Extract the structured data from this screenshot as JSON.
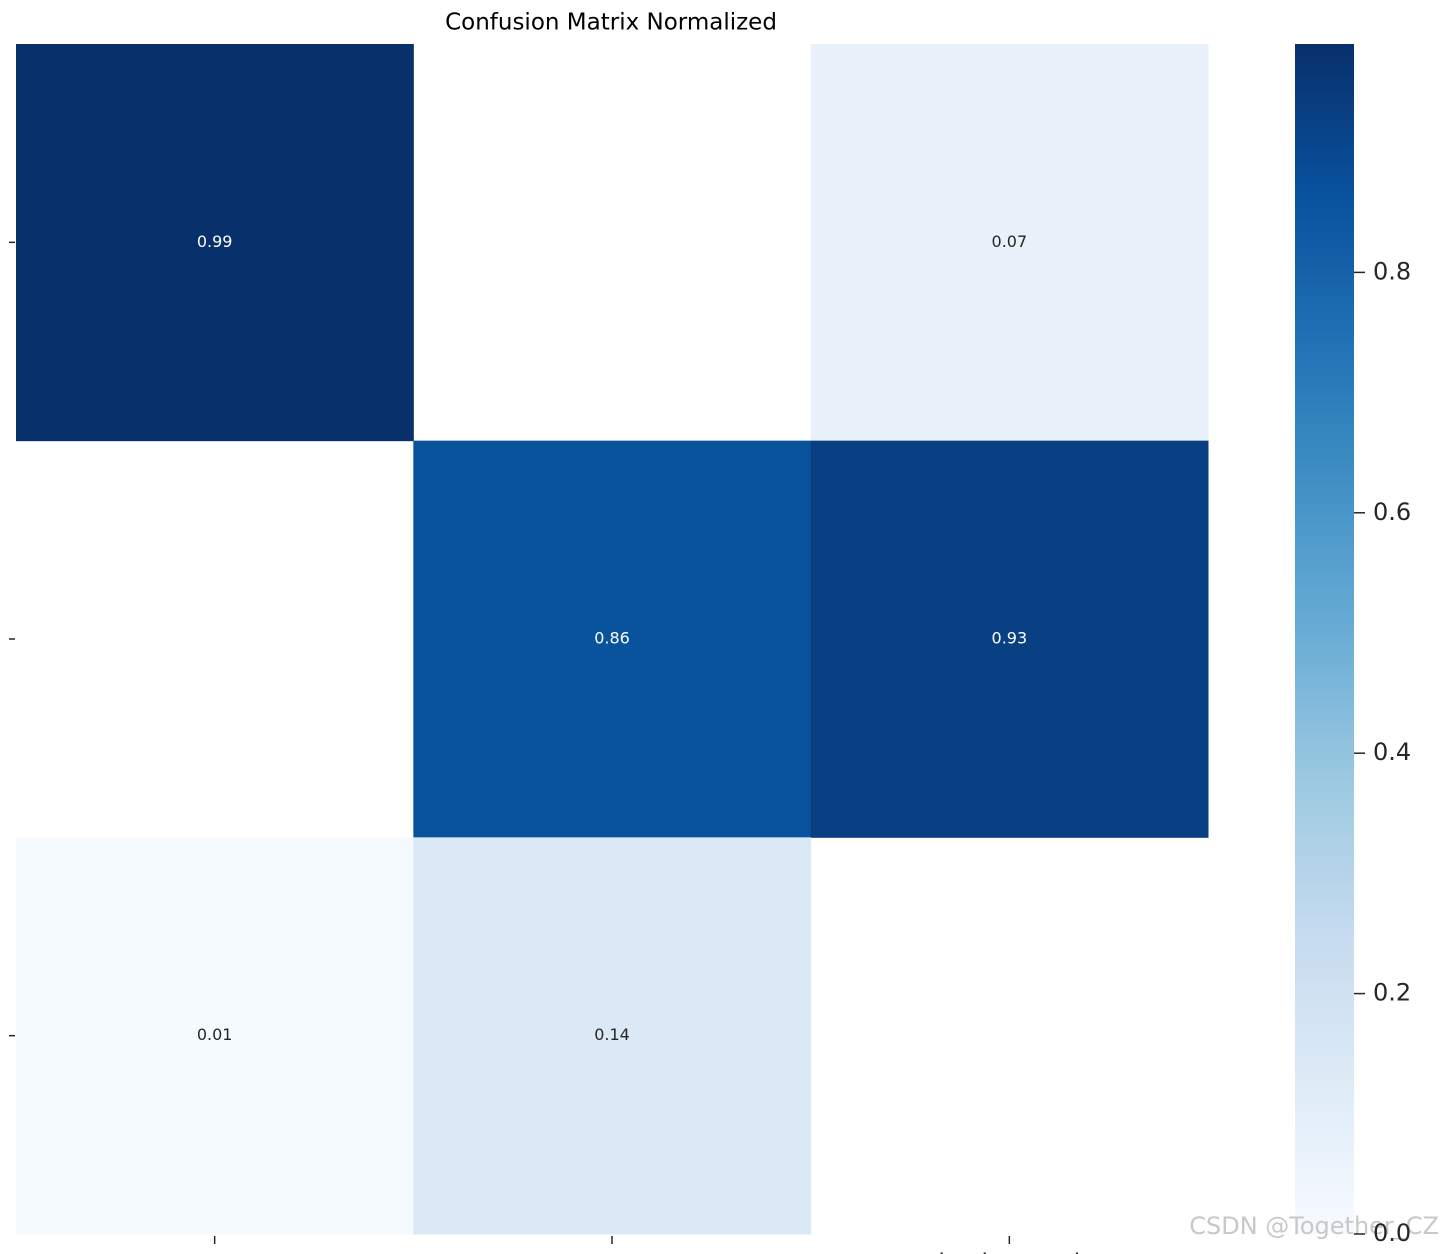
{
  "chart_data": {
    "type": "heatmap",
    "title": "Confusion Matrix Normalized",
    "x_categories": [
      null,
      null,
      "background"
    ],
    "y_categories": [
      null,
      null,
      null
    ],
    "values": [
      [
        0.99,
        null,
        0.07
      ],
      [
        null,
        0.86,
        0.93
      ],
      [
        0.01,
        0.14,
        null
      ]
    ],
    "colormap": "Blues",
    "zlim": [
      0,
      0.99
    ],
    "zticks": [
      {
        "value": 0,
        "label": "0.0"
      },
      0.2,
      0.4,
      0.6,
      0.8
    ]
  },
  "watermark": "CSDN @Together_CZ"
}
